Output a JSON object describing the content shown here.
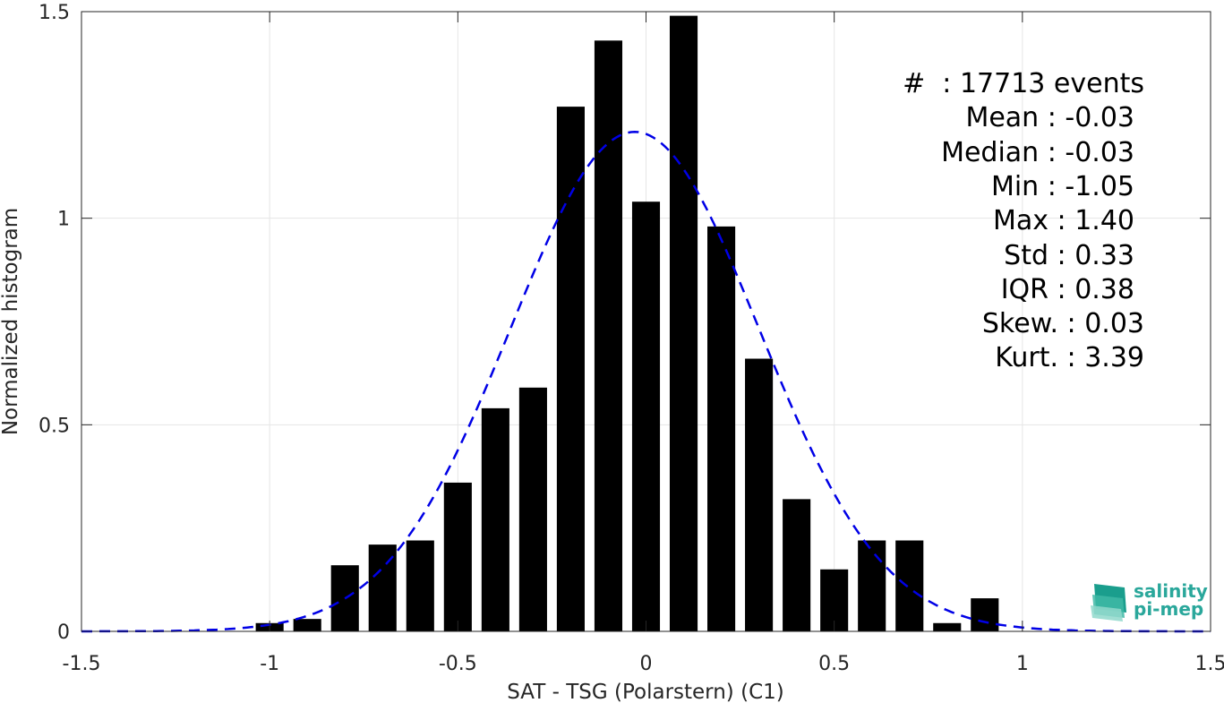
{
  "chart_data": {
    "type": "bar",
    "xlabel": "SAT - TSG (Polarstern) (C1)",
    "ylabel": "Normalized histogram",
    "xlim": [
      -1.5,
      1.5
    ],
    "ylim": [
      0,
      1.5
    ],
    "grid": true,
    "x_ticks": [
      "-1.5",
      "-1",
      "-0.5",
      "0",
      "0.5",
      "1",
      "1.5"
    ],
    "y_ticks": [
      "0",
      "0.5",
      "1",
      "1.5"
    ],
    "bar_color": "#000000",
    "bin_width": 0.1,
    "bars": [
      {
        "x": -1.0,
        "value": 0.02
      },
      {
        "x": -0.9,
        "value": 0.03
      },
      {
        "x": -0.8,
        "value": 0.16
      },
      {
        "x": -0.7,
        "value": 0.21
      },
      {
        "x": -0.6,
        "value": 0.22
      },
      {
        "x": -0.5,
        "value": 0.36
      },
      {
        "x": -0.4,
        "value": 0.54
      },
      {
        "x": -0.3,
        "value": 0.59
      },
      {
        "x": -0.2,
        "value": 1.27
      },
      {
        "x": -0.1,
        "value": 1.43
      },
      {
        "x": 0.0,
        "value": 1.04
      },
      {
        "x": 0.1,
        "value": 1.49
      },
      {
        "x": 0.2,
        "value": 0.98
      },
      {
        "x": 0.3,
        "value": 0.66
      },
      {
        "x": 0.4,
        "value": 0.32
      },
      {
        "x": 0.5,
        "value": 0.15
      },
      {
        "x": 0.6,
        "value": 0.22
      },
      {
        "x": 0.7,
        "value": 0.22
      },
      {
        "x": 0.8,
        "value": 0.02
      },
      {
        "x": 0.9,
        "value": 0.08
      }
    ],
    "fit_curve": {
      "style": "dashed",
      "color": "#0000e6",
      "distribution": "normal",
      "mean": -0.03,
      "std": 0.33
    }
  },
  "stats": [
    "#  : 17713 events",
    "Mean : -0.03",
    "Median : -0.03",
    "Min : -1.05",
    "Max : 1.40",
    "Std : 0.33",
    "IQR : 0.38",
    "Skew. : 0.03",
    "Kurt. : 3.39"
  ],
  "logo": {
    "line1": "salinity",
    "line2": "pi-mep",
    "color": "#2aa79b"
  }
}
